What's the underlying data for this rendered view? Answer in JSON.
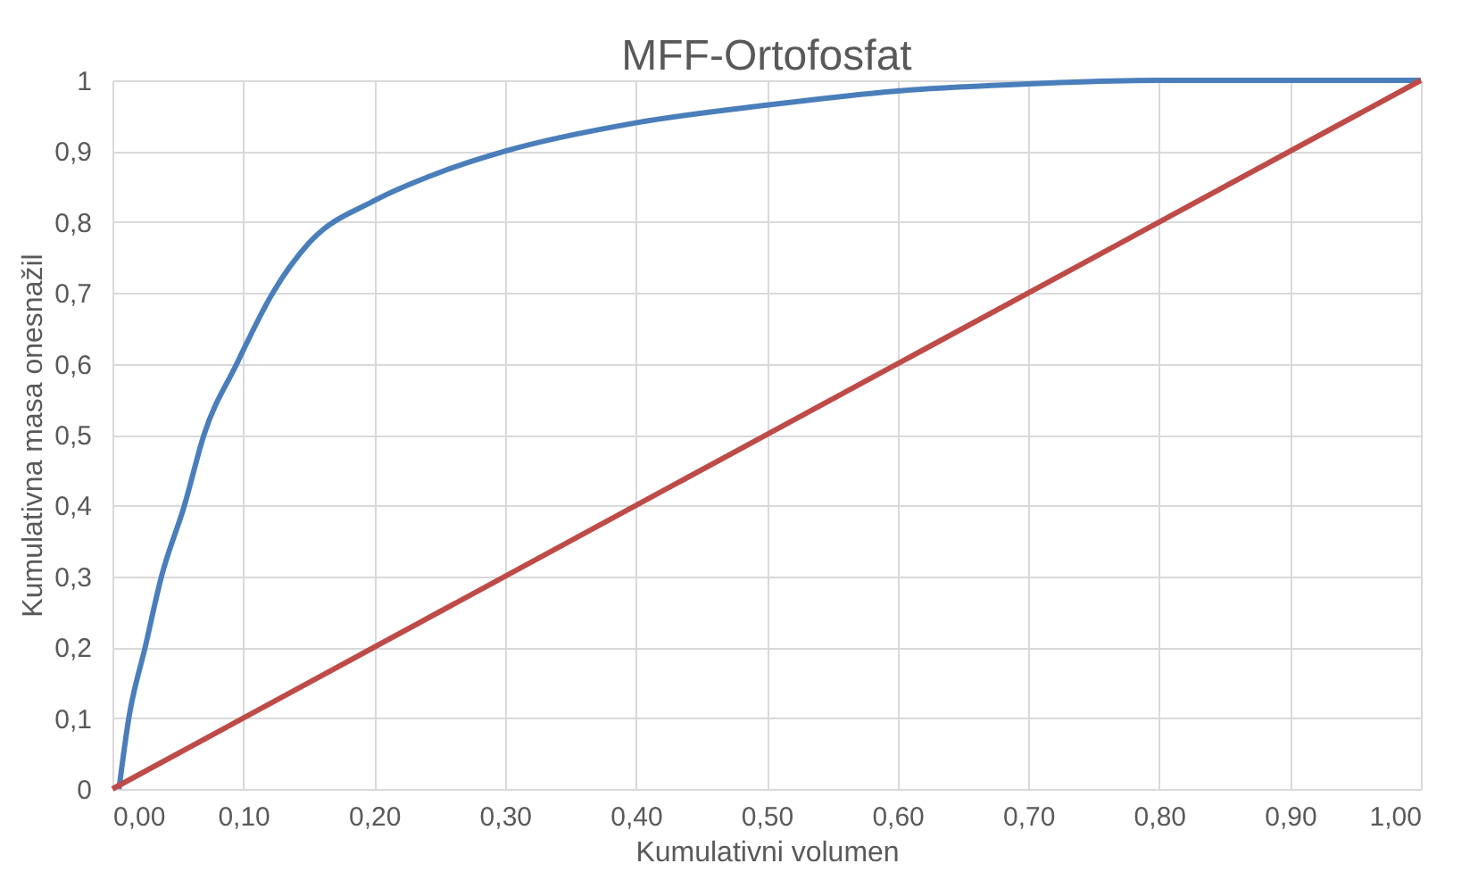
{
  "chart_data": {
    "type": "line",
    "title": "MFF-Ortofosfat",
    "xlabel": "Kumulativni volumen",
    "ylabel": "Kumulativna masa onesnažil",
    "series": [
      {
        "color": "#4a7ebb",
        "x": [
          0.005,
          0.0125,
          0.025,
          0.0375,
          0.055,
          0.07,
          0.095,
          0.1225,
          0.15,
          0.2,
          0.25,
          0.3,
          0.4,
          0.5,
          0.6,
          0.7,
          0.8,
          0.9,
          1.0
        ],
        "values": [
          0,
          0.1,
          0.2,
          0.3,
          0.4,
          0.5,
          0.6,
          0.7,
          0.77,
          0.83,
          0.87,
          0.9,
          0.94,
          0.965,
          0.985,
          0.995,
          1,
          1,
          1
        ]
      },
      {
        "color": "#be4b48",
        "x": [
          0,
          1
        ],
        "values": [
          0,
          1
        ]
      }
    ],
    "xlim": [
      0,
      1
    ],
    "xticks": [
      {
        "value": 0,
        "label": "0,00"
      },
      {
        "value": 0.1,
        "label": "0,10"
      },
      {
        "value": 0.2,
        "label": "0,20"
      },
      {
        "value": 0.3,
        "label": "0,30"
      },
      {
        "value": 0.4,
        "label": "0,40"
      },
      {
        "value": 0.5,
        "label": "0,50"
      },
      {
        "value": 0.6,
        "label": "0,60"
      },
      {
        "value": 0.7,
        "label": "0,70"
      },
      {
        "value": 0.8,
        "label": "0,80"
      },
      {
        "value": 0.9,
        "label": "0,90"
      },
      {
        "value": 1,
        "label": "1,00"
      }
    ],
    "ylim": [
      0,
      1
    ],
    "yticks": [
      0,
      {
        "value": 0.1,
        "label": "0,1"
      },
      {
        "value": 0.2,
        "label": "0,2"
      },
      {
        "value": 0.3,
        "label": "0,3"
      },
      {
        "value": 0.4,
        "label": "0,4"
      },
      {
        "value": 0.5,
        "label": "0,5"
      },
      {
        "value": 0.6,
        "label": "0,6"
      },
      {
        "value": 0.7,
        "label": "0,7"
      },
      {
        "value": 0.8,
        "label": "0,8"
      },
      {
        "value": 0.9,
        "label": "0,9"
      },
      1
    ],
    "grid": true,
    "marker": "none",
    "line_style": "solid"
  }
}
